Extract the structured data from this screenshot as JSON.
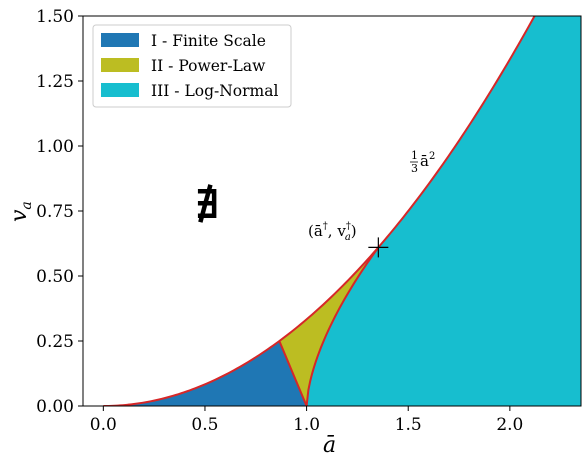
{
  "chart_data": {
    "type": "area",
    "xlabel": "ā",
    "ylabel": "v_a",
    "xlim": [
      -0.1,
      2.35
    ],
    "ylim": [
      0,
      1.5
    ],
    "xticks": [
      {
        "value": 0.0,
        "label": "0.0"
      },
      {
        "value": 0.5,
        "label": "0.5"
      },
      {
        "value": 1.0,
        "label": "1.0"
      },
      {
        "value": 1.5,
        "label": "1.5"
      },
      {
        "value": 2.0,
        "label": "2.0"
      }
    ],
    "yticks": [
      {
        "value": 0.0,
        "label": "0.00"
      },
      {
        "value": 0.25,
        "label": "0.25"
      },
      {
        "value": 0.5,
        "label": "0.50"
      },
      {
        "value": 0.75,
        "label": "0.75"
      },
      {
        "value": 1.0,
        "label": "1.00"
      },
      {
        "value": 1.25,
        "label": "1.25"
      },
      {
        "value": 1.5,
        "label": "1.50"
      }
    ],
    "grid": false,
    "legend_position": "top-left",
    "series": [
      {
        "name": "I - Finite Scale",
        "color": "#1f77b4",
        "vertices": [
          [
            0,
            0
          ],
          [
            0.866,
            0.25
          ],
          [
            1.0,
            0
          ]
        ]
      },
      {
        "name": "II - Power-Law",
        "color": "#bcbd22",
        "vertices": [
          [
            0.866,
            0.25
          ],
          [
            1.353,
            0.61
          ],
          [
            1.0,
            0
          ]
        ]
      },
      {
        "name": "III - Log-Normal",
        "color": "#17becf",
        "vertices": [
          [
            1.0,
            0
          ],
          [
            1.353,
            0.61
          ],
          [
            2.35,
            1.5
          ],
          [
            2.35,
            0
          ]
        ]
      }
    ],
    "boundary_curve": {
      "label": "1/3 ā²",
      "coefficient": 0.3333,
      "color": "#d62728"
    },
    "triple_point": {
      "x": 1.353,
      "y": 0.61,
      "label": "(ā†, v_a†)"
    },
    "nonexistence_symbol": {
      "x": 0.53,
      "y": 0.78,
      "symbol": "∄"
    }
  },
  "annotations": {
    "curve_label_frac_num": "1",
    "curve_label_frac_den": "3",
    "curve_label_var": "ā",
    "curve_label_exp": "2",
    "point_label_open": "(ā",
    "point_label_dagger1": "†",
    "point_label_mid": ", v",
    "point_label_sub": "a",
    "point_label_dagger2": "†",
    "point_label_close": ")",
    "nonexist_symbol": "∄"
  },
  "axis_titles": {
    "x": "ā",
    "y_main": "v",
    "y_sub": "a"
  }
}
